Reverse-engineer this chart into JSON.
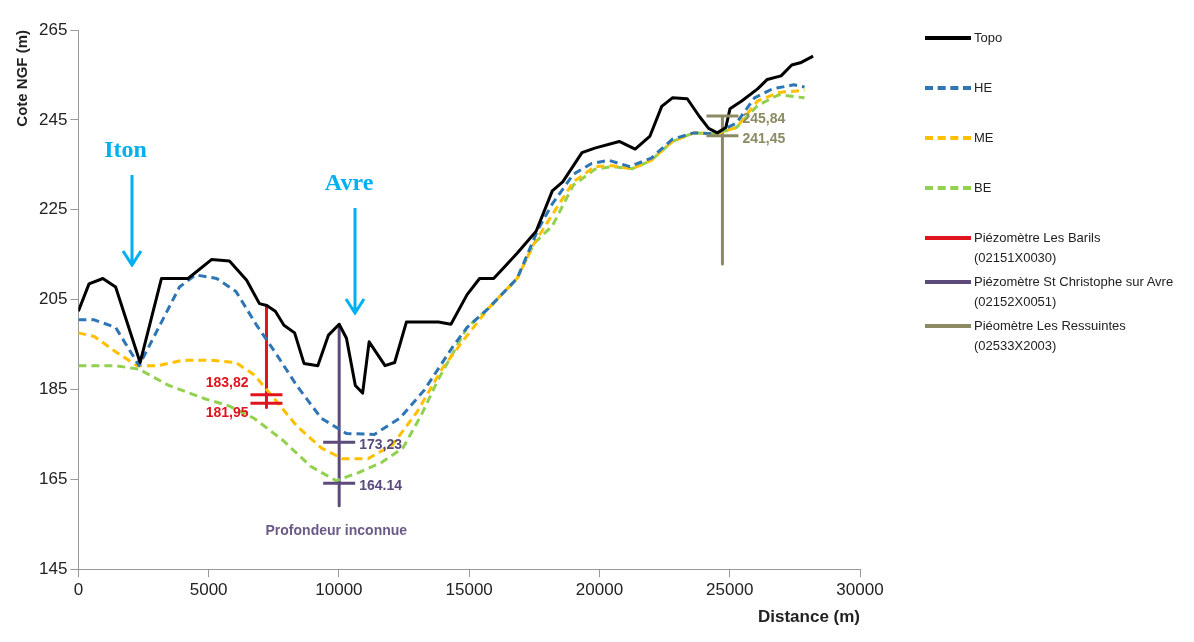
{
  "chart_data": {
    "type": "line",
    "xlabel": "Distance (m)",
    "ylabel": "Cote NGF (m)",
    "xlim": [
      0,
      30000
    ],
    "xticks": [
      0,
      5000,
      10000,
      15000,
      20000,
      25000,
      30000
    ],
    "ylim": [
      145,
      265
    ],
    "yticks": [
      145,
      165,
      185,
      205,
      225,
      245,
      265
    ],
    "grid": false,
    "legend": "right",
    "marker": "none",
    "series": [
      {
        "name": "Topo",
        "color": "#000000",
        "line_style": "solid",
        "x": [
          0,
          409,
          940,
          1430,
          2370,
          3190,
          4210,
          5110,
          5800,
          6460,
          6950,
          7230,
          7560,
          7890,
          8300,
          8660,
          9190,
          9600,
          10010,
          10290,
          10630,
          10910,
          11160,
          11770,
          12140,
          12590,
          13820,
          14300,
          14920,
          15400,
          15940,
          16840,
          17570,
          18190,
          18590,
          19330,
          19820,
          20760,
          21370,
          21940,
          22390,
          22800,
          23370,
          23830,
          24190,
          24520,
          24850,
          25010,
          25460,
          26070,
          26440,
          26970,
          27380,
          27710,
          28200
        ],
        "values": [
          202.4,
          208.5,
          209.7,
          207.8,
          191.0,
          209.7,
          209.7,
          213.9,
          213.6,
          209.3,
          204.1,
          203.7,
          202.4,
          199.3,
          197.6,
          190.8,
          190.3,
          197.1,
          199.5,
          196.4,
          185.9,
          184.2,
          195.6,
          190.3,
          191.0,
          200.0,
          200.0,
          199.5,
          206.1,
          209.7,
          209.7,
          215.3,
          220.2,
          229.2,
          231.2,
          237.7,
          238.7,
          240.2,
          238.5,
          241.4,
          248.0,
          249.9,
          249.7,
          245.8,
          243.1,
          242.1,
          243.3,
          247.5,
          249.2,
          251.9,
          254.0,
          254.8,
          257.2,
          257.7,
          259.2
        ]
      },
      {
        "name": "HE",
        "color": "#2e75b6",
        "line_style": "dashed",
        "x": [
          0,
          610,
          1430,
          2330,
          3190,
          3880,
          4500,
          5310,
          6050,
          6820,
          7560,
          8380,
          9320,
          10290,
          11360,
          12340,
          13280,
          14380,
          14920,
          15730,
          16840,
          17650,
          18190,
          19000,
          19700,
          20350,
          21170,
          21990,
          22800,
          23620,
          24440,
          25260,
          25950,
          26640,
          27460,
          27870
        ],
        "values": [
          200.5,
          200.5,
          198.8,
          190.3,
          200.0,
          207.8,
          210.5,
          209.7,
          206.8,
          199.5,
          193.2,
          185.9,
          178.6,
          175.2,
          175.0,
          178.6,
          184.9,
          194.6,
          198.8,
          203.0,
          209.7,
          220.7,
          226.3,
          232.9,
          235.3,
          236.0,
          234.6,
          236.5,
          240.7,
          242.1,
          241.9,
          244.3,
          249.9,
          251.9,
          252.8,
          252.3
        ]
      },
      {
        "name": "ME",
        "color": "#ffc000",
        "line_style": "dashed",
        "x": [
          0,
          610,
          1430,
          2250,
          3060,
          4000,
          5110,
          6050,
          6740,
          7440,
          8380,
          9320,
          10130,
          11120,
          12060,
          13000,
          13980,
          14920,
          15730,
          16840,
          17490,
          18190,
          19000,
          19820,
          20510,
          21250,
          21990,
          22800,
          23620,
          24440,
          25260,
          26070,
          26890,
          27870
        ],
        "values": [
          197.6,
          196.8,
          193.4,
          190.3,
          190.3,
          191.5,
          191.5,
          191.0,
          188.3,
          183.5,
          176.9,
          172.0,
          169.6,
          169.6,
          172.7,
          180.0,
          189.8,
          197.0,
          203.0,
          209.7,
          217.5,
          223.9,
          231.2,
          234.6,
          234.8,
          234.1,
          236.0,
          240.2,
          242.1,
          241.9,
          243.3,
          249.2,
          251.1,
          251.6
        ]
      },
      {
        "name": "BE",
        "color": "#92d050",
        "line_style": "dashed",
        "x": [
          0,
          1430,
          2330,
          3470,
          4820,
          5800,
          6740,
          7850,
          8910,
          9890,
          10710,
          11650,
          12460,
          13160,
          13820,
          14920,
          15730,
          16840,
          17490,
          18190,
          19000,
          19820,
          20510,
          21250,
          21990,
          22800,
          23620,
          24440,
          25260,
          26070,
          26890,
          27870
        ],
        "values": [
          190.3,
          190.3,
          189.5,
          185.9,
          183.0,
          181.3,
          178.6,
          173.7,
          167.9,
          164.7,
          166.4,
          168.8,
          172.0,
          179.3,
          187.3,
          198.8,
          203.0,
          209.7,
          217.5,
          221.4,
          230.5,
          234.0,
          234.6,
          234.1,
          236.0,
          240.2,
          242.1,
          241.9,
          243.3,
          248.2,
          250.6,
          249.9
        ]
      },
      {
        "name": "Piézomètre Les Barils (02151X0030)",
        "color": "#e0141e",
        "line_style": "solid",
        "x": [
          7220,
          7220
        ],
        "values": [
          203.7,
          181.0
        ]
      },
      {
        "name": "Piézomètre St Christophe sur Avre (02152X0051)",
        "color": "#5b4a7a",
        "line_style": "solid",
        "x": [
          10010,
          10010
        ],
        "values": [
          199.5,
          159.1
        ]
      },
      {
        "name": "Piéomètre Les Ressuintes (02533X2003)",
        "color": "#8b8a63",
        "line_style": "solid",
        "x": [
          24720,
          24720
        ],
        "values": [
          245.8,
          212.9
        ]
      }
    ],
    "annotations": [
      "Iton",
      "Avre",
      {
        "text": "183,82",
        "x": 7220,
        "y": 183.82
      },
      {
        "text": "181,95",
        "x": 7220,
        "y": 181.95
      },
      {
        "text": "173,23",
        "x": 10010,
        "y": 173.23
      },
      {
        "text": "164.14",
        "x": 10010,
        "y": 164.14
      },
      {
        "text": "245,84",
        "x": 24720,
        "y": 245.84
      },
      {
        "text": "241,45",
        "x": 24720,
        "y": 241.45
      },
      "Profondeur inconnue"
    ]
  }
}
